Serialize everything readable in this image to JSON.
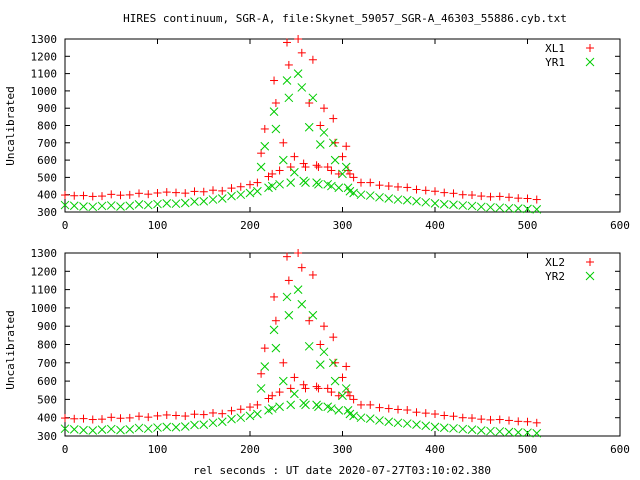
{
  "title": "HIRES continuum, SGR-A, file:Skynet_59057_SGR-A_46303_55886.cyb.txt",
  "chart_data": [
    {
      "type": "scatter",
      "ylabel": "Uncalibrated",
      "xlabel": "",
      "xlim": [
        0,
        600
      ],
      "ylim": [
        300,
        1300
      ],
      "xticks": [
        0,
        100,
        200,
        300,
        400,
        500,
        600
      ],
      "yticks": [
        300,
        400,
        500,
        600,
        700,
        800,
        900,
        1000,
        1100,
        1200,
        1300
      ],
      "grid": false,
      "legend": "top-right",
      "series": [
        {
          "name": "XL1",
          "marker": "plus",
          "color": "#ff0000",
          "x": [
            0,
            10,
            20,
            30,
            40,
            50,
            60,
            70,
            80,
            90,
            100,
            110,
            120,
            130,
            140,
            150,
            160,
            170,
            180,
            190,
            200,
            208,
            212,
            216,
            220,
            224,
            226,
            228,
            232,
            236,
            240,
            242,
            244,
            248,
            252,
            256,
            258,
            260,
            264,
            268,
            272,
            274,
            276,
            280,
            284,
            288,
            290,
            292,
            296,
            300,
            304,
            306,
            308,
            312,
            320,
            330,
            340,
            350,
            360,
            370,
            380,
            390,
            400,
            410,
            420,
            430,
            440,
            450,
            460,
            470,
            480,
            490,
            500,
            510
          ],
          "y": [
            398,
            394,
            395,
            390,
            392,
            402,
            397,
            399,
            408,
            403,
            410,
            415,
            412,
            409,
            419,
            417,
            426,
            422,
            438,
            446,
            458,
            470,
            640,
            780,
            505,
            520,
            1060,
            930,
            540,
            700,
            1280,
            1150,
            560,
            620,
            1300,
            1220,
            580,
            560,
            930,
            1180,
            570,
            560,
            800,
            900,
            560,
            540,
            840,
            700,
            520,
            620,
            680,
            540,
            520,
            500,
            470,
            470,
            455,
            450,
            445,
            442,
            430,
            425,
            420,
            412,
            408,
            400,
            398,
            392,
            388,
            390,
            385,
            380,
            378,
            372
          ]
        },
        {
          "name": "YR1",
          "marker": "cross",
          "color": "#00cc00",
          "x": [
            0,
            10,
            20,
            30,
            40,
            50,
            60,
            70,
            80,
            90,
            100,
            110,
            120,
            130,
            140,
            150,
            160,
            170,
            180,
            190,
            200,
            208,
            212,
            216,
            220,
            224,
            226,
            228,
            232,
            236,
            240,
            242,
            244,
            248,
            252,
            256,
            258,
            260,
            264,
            268,
            272,
            274,
            276,
            280,
            284,
            288,
            290,
            292,
            296,
            300,
            304,
            306,
            308,
            312,
            320,
            330,
            340,
            350,
            360,
            370,
            380,
            390,
            400,
            410,
            420,
            430,
            440,
            450,
            460,
            470,
            480,
            490,
            500,
            510
          ],
          "y": [
            340,
            336,
            332,
            330,
            335,
            338,
            332,
            336,
            344,
            340,
            346,
            350,
            348,
            352,
            360,
            362,
            372,
            378,
            392,
            400,
            410,
            420,
            560,
            680,
            440,
            450,
            880,
            780,
            460,
            600,
            1060,
            960,
            470,
            530,
            1100,
            1020,
            480,
            470,
            790,
            960,
            470,
            460,
            690,
            760,
            460,
            450,
            700,
            600,
            440,
            520,
            560,
            440,
            420,
            410,
            400,
            395,
            385,
            378,
            372,
            368,
            362,
            356,
            350,
            345,
            342,
            338,
            335,
            330,
            327,
            325,
            322,
            320,
            318,
            315
          ]
        }
      ]
    },
    {
      "type": "scatter",
      "ylabel": "Uncalibrated",
      "xlabel": "rel seconds : UT date 2020-07-27T03:10:02.380",
      "xlim": [
        0,
        600
      ],
      "ylim": [
        300,
        1300
      ],
      "xticks": [
        0,
        100,
        200,
        300,
        400,
        500,
        600
      ],
      "yticks": [
        300,
        400,
        500,
        600,
        700,
        800,
        900,
        1000,
        1100,
        1200,
        1300
      ],
      "grid": false,
      "legend": "top-right",
      "series": [
        {
          "name": "XL2",
          "marker": "plus",
          "color": "#ff0000",
          "x": [
            0,
            10,
            20,
            30,
            40,
            50,
            60,
            70,
            80,
            90,
            100,
            110,
            120,
            130,
            140,
            150,
            160,
            170,
            180,
            190,
            200,
            208,
            212,
            216,
            220,
            224,
            226,
            228,
            232,
            236,
            240,
            242,
            244,
            248,
            252,
            256,
            258,
            260,
            264,
            268,
            272,
            274,
            276,
            280,
            284,
            288,
            290,
            292,
            296,
            300,
            304,
            306,
            308,
            312,
            320,
            330,
            340,
            350,
            360,
            370,
            380,
            390,
            400,
            410,
            420,
            430,
            440,
            450,
            460,
            470,
            480,
            490,
            500,
            510
          ],
          "y": [
            398,
            394,
            395,
            390,
            392,
            402,
            397,
            399,
            408,
            403,
            410,
            415,
            412,
            409,
            419,
            417,
            426,
            422,
            438,
            446,
            458,
            470,
            640,
            780,
            505,
            520,
            1060,
            930,
            540,
            700,
            1280,
            1150,
            560,
            620,
            1300,
            1220,
            580,
            560,
            930,
            1180,
            570,
            560,
            800,
            900,
            560,
            540,
            840,
            700,
            520,
            620,
            680,
            540,
            520,
            500,
            470,
            470,
            455,
            450,
            445,
            442,
            430,
            425,
            420,
            412,
            408,
            400,
            398,
            392,
            388,
            390,
            385,
            380,
            378,
            372
          ]
        },
        {
          "name": "YR2",
          "marker": "cross",
          "color": "#00cc00",
          "x": [
            0,
            10,
            20,
            30,
            40,
            50,
            60,
            70,
            80,
            90,
            100,
            110,
            120,
            130,
            140,
            150,
            160,
            170,
            180,
            190,
            200,
            208,
            212,
            216,
            220,
            224,
            226,
            228,
            232,
            236,
            240,
            242,
            244,
            248,
            252,
            256,
            258,
            260,
            264,
            268,
            272,
            274,
            276,
            280,
            284,
            288,
            290,
            292,
            296,
            300,
            304,
            306,
            308,
            312,
            320,
            330,
            340,
            350,
            360,
            370,
            380,
            390,
            400,
            410,
            420,
            430,
            440,
            450,
            460,
            470,
            480,
            490,
            500,
            510
          ],
          "y": [
            340,
            336,
            332,
            330,
            335,
            338,
            332,
            336,
            344,
            340,
            346,
            350,
            348,
            352,
            360,
            362,
            372,
            378,
            392,
            400,
            410,
            420,
            560,
            680,
            440,
            450,
            880,
            780,
            460,
            600,
            1060,
            960,
            470,
            530,
            1100,
            1020,
            480,
            470,
            790,
            960,
            470,
            460,
            690,
            760,
            460,
            450,
            700,
            600,
            440,
            520,
            560,
            440,
            420,
            410,
            400,
            395,
            385,
            378,
            372,
            368,
            362,
            356,
            350,
            345,
            342,
            338,
            335,
            330,
            327,
            325,
            322,
            320,
            318,
            315
          ]
        }
      ]
    }
  ]
}
